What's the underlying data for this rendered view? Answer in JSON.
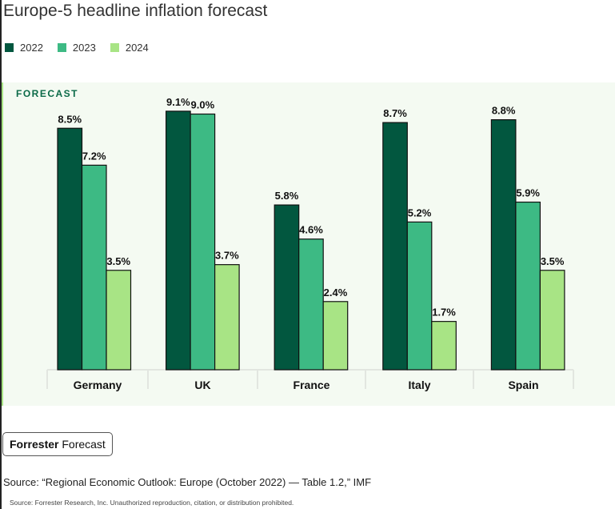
{
  "title": "Europe-5 headline inflation forecast",
  "forecast_label": "FORECAST",
  "badge": {
    "bold": "Forrester",
    "rest": "Forecast"
  },
  "source": "Source: “Regional Economic Outlook: Europe (October 2022) — Table 1.2,” IMF",
  "footer": "Source: Forrester Research, Inc. Unauthorized reproduction, citation, or distribution prohibited.",
  "chart_data": {
    "type": "bar",
    "title": "Europe-5 headline inflation forecast",
    "categories": [
      "Germany",
      "UK",
      "France",
      "Italy",
      "Spain"
    ],
    "series": [
      {
        "name": "2022",
        "color": "#02573f",
        "values": [
          8.5,
          9.1,
          5.8,
          8.7,
          8.8
        ]
      },
      {
        "name": "2023",
        "color": "#3dba84",
        "values": [
          7.2,
          9.0,
          4.6,
          5.2,
          5.9
        ]
      },
      {
        "name": "2024",
        "color": "#a8e485",
        "values": [
          3.5,
          3.7,
          2.4,
          1.7,
          3.5
        ]
      }
    ],
    "value_format": "%",
    "legend": "top-left",
    "grid": false
  }
}
